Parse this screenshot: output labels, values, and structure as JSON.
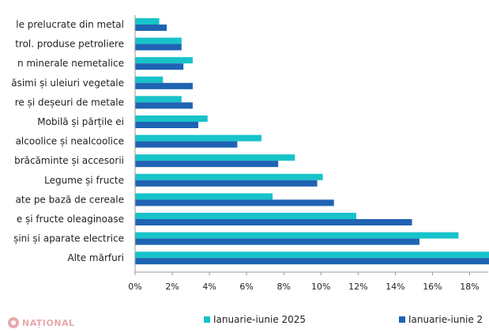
{
  "chart_data": {
    "type": "bar",
    "orientation": "horizontal",
    "categories": [
      "le prelucrate din metal",
      "trol. produse petroliere",
      "n minerale nemetalice",
      "ăsimi și uleiuri vegetale",
      "re și deșeuri de metale",
      "Mobilă și părțile ei",
      "alcoolice și nealcoolice",
      "brăcăminte și accesorii",
      "Legume și fructe",
      "ate pe bază de cereale",
      "e și fructe oleaginoase",
      "șini și aparate electrice",
      "Alte mărfuri"
    ],
    "series": [
      {
        "name": "Ianuarie-iunie 2025",
        "color": "#17c3c9",
        "values": [
          1.3,
          2.5,
          3.1,
          1.5,
          2.5,
          3.9,
          6.8,
          8.6,
          10.1,
          7.4,
          11.9,
          17.4,
          19.5
        ]
      },
      {
        "name": "Ianuarie-iunie 2",
        "color": "#1f63b3",
        "values": [
          1.7,
          2.5,
          2.6,
          3.1,
          3.1,
          3.4,
          5.5,
          7.7,
          9.8,
          10.7,
          14.9,
          15.3,
          19.5
        ]
      }
    ],
    "xlim": [
      0,
      19
    ],
    "xticks": [
      "0%",
      "2%",
      "4%",
      "6%",
      "8%",
      "10%",
      "12%",
      "14%",
      "16%",
      "18%"
    ],
    "grid": false,
    "legend_position": "bottom"
  },
  "logo": {
    "text": "NAȚIONAL"
  }
}
